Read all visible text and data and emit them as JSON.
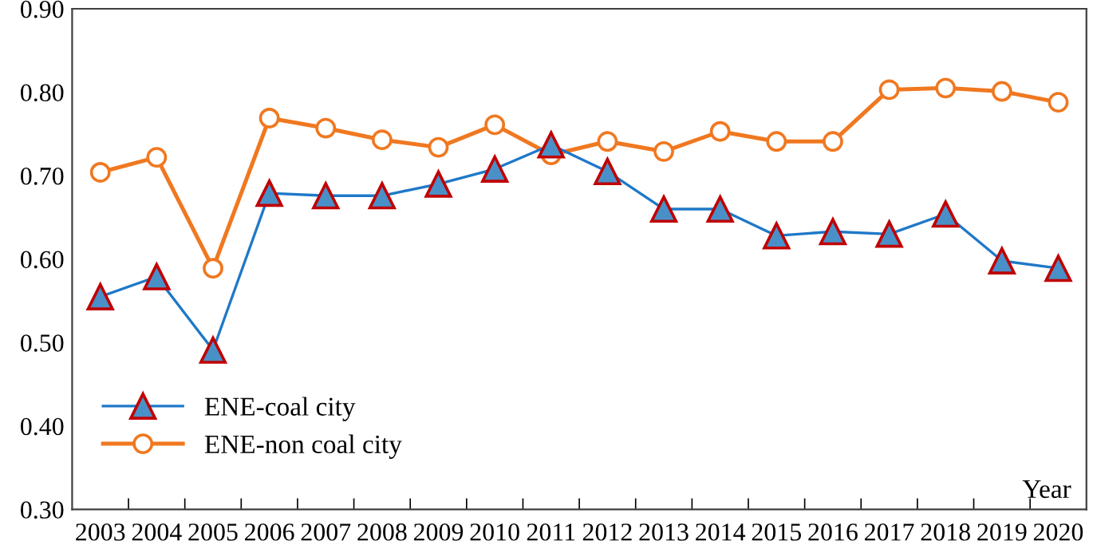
{
  "chart_data": {
    "type": "line",
    "xlabel": "Year",
    "categories": [
      "2003",
      "2004",
      "2005",
      "2006",
      "2007",
      "2008",
      "2009",
      "2010",
      "2011",
      "2012",
      "2013",
      "2014",
      "2015",
      "2016",
      "2017",
      "2018",
      "2019",
      "2020"
    ],
    "series": [
      {
        "name": "ENE-coal city",
        "color": "#1f78c8",
        "marker": "triangle",
        "values": [
          0.555,
          0.579,
          0.491,
          0.679,
          0.676,
          0.676,
          0.69,
          0.708,
          0.737,
          0.705,
          0.66,
          0.66,
          0.628,
          0.633,
          0.63,
          0.654,
          0.598,
          0.589
        ]
      },
      {
        "name": "ENE-non coal city",
        "color": "#f07820",
        "marker": "circle",
        "values": [
          0.704,
          0.722,
          0.589,
          0.769,
          0.757,
          0.743,
          0.734,
          0.761,
          0.725,
          0.741,
          0.729,
          0.753,
          0.741,
          0.741,
          0.803,
          0.805,
          0.801,
          0.788
        ]
      }
    ],
    "ylim": [
      0.3,
      0.9
    ],
    "yticks": [
      {
        "value": 0.3,
        "label": "0.30"
      },
      {
        "value": 0.4,
        "label": "0.40"
      },
      {
        "value": 0.5,
        "label": "0.50"
      },
      {
        "value": 0.6,
        "label": "0.60"
      },
      {
        "value": 0.7,
        "label": "0.70"
      },
      {
        "value": 0.8,
        "label": "0.80"
      },
      {
        "value": 0.9,
        "label": "0.90"
      }
    ],
    "grid": false,
    "legend": "bottom left",
    "line_style": "solid"
  }
}
